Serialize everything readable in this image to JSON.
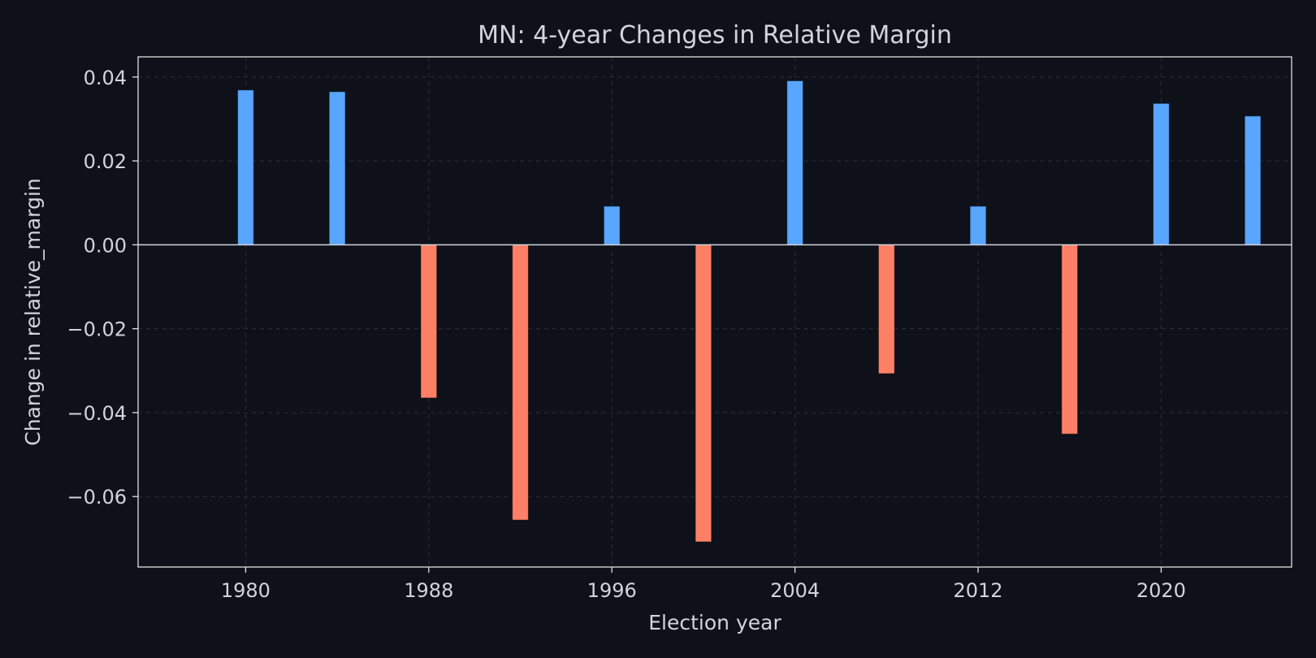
{
  "colors": {
    "background": "#0e111a",
    "axes": "#e0e0e0",
    "text": "#d0d4dc",
    "grid": "#2a2f3a",
    "positive": "#58a6ff",
    "negative": "#ff8066"
  },
  "chart_data": {
    "type": "bar",
    "title": "MN: 4-year Changes in Relative Margin",
    "xlabel": "Election year",
    "ylabel": "Change in relative_margin",
    "xlim": [
      1975.3,
      2025.7
    ],
    "ylim": [
      -0.0768,
      0.0448
    ],
    "x_ticks": [
      1980,
      1988,
      1996,
      2004,
      2012,
      2020
    ],
    "x_tick_labels": [
      "1980",
      "1988",
      "1996",
      "2004",
      "2012",
      "2020"
    ],
    "y_ticks": [
      -0.06,
      -0.04,
      -0.02,
      0.0,
      0.02,
      0.04
    ],
    "y_tick_labels": [
      "−0.06",
      "−0.04",
      "−0.02",
      "0.00",
      "0.02",
      "0.04"
    ],
    "grid": true,
    "bar_width_years": 0.7,
    "x": [
      1980,
      1984,
      1988,
      1992,
      1996,
      2000,
      2004,
      2008,
      2012,
      2016,
      2020,
      2024
    ],
    "values": [
      0.0369,
      0.0365,
      -0.0365,
      -0.0656,
      0.0092,
      -0.0708,
      0.0391,
      -0.0307,
      0.0092,
      -0.0451,
      0.0337,
      0.0307
    ]
  }
}
